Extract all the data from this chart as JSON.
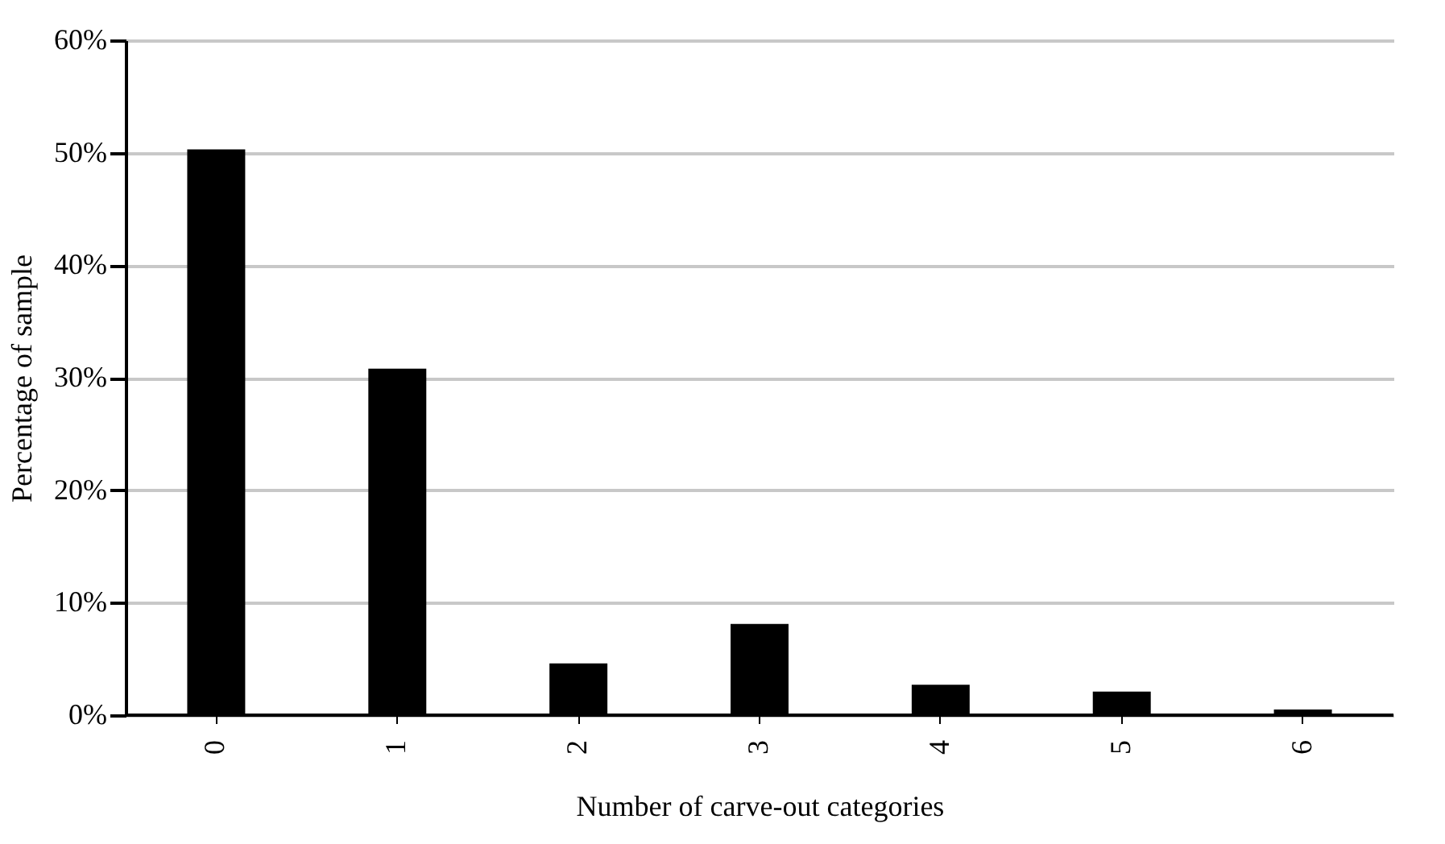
{
  "chart_data": {
    "type": "bar",
    "xlabel": "Number of carve-out categories",
    "ylabel": "Percentage of sample",
    "categories": [
      "0",
      "1",
      "2",
      "3",
      "4",
      "5",
      "6"
    ],
    "values": [
      50.3,
      30.8,
      4.6,
      8.1,
      2.7,
      2.1,
      0.5
    ],
    "color": "#000000",
    "ylim": [
      0,
      60
    ],
    "yticks": [
      {
        "value": 0,
        "label": "0%"
      },
      {
        "value": 10,
        "label": "10%"
      },
      {
        "value": 20,
        "label": "20%"
      },
      {
        "value": 30,
        "label": "30%"
      },
      {
        "value": 40,
        "label": "40%"
      },
      {
        "value": 50,
        "label": "50%"
      },
      {
        "value": 60,
        "label": "60%"
      }
    ],
    "grid": "y"
  }
}
